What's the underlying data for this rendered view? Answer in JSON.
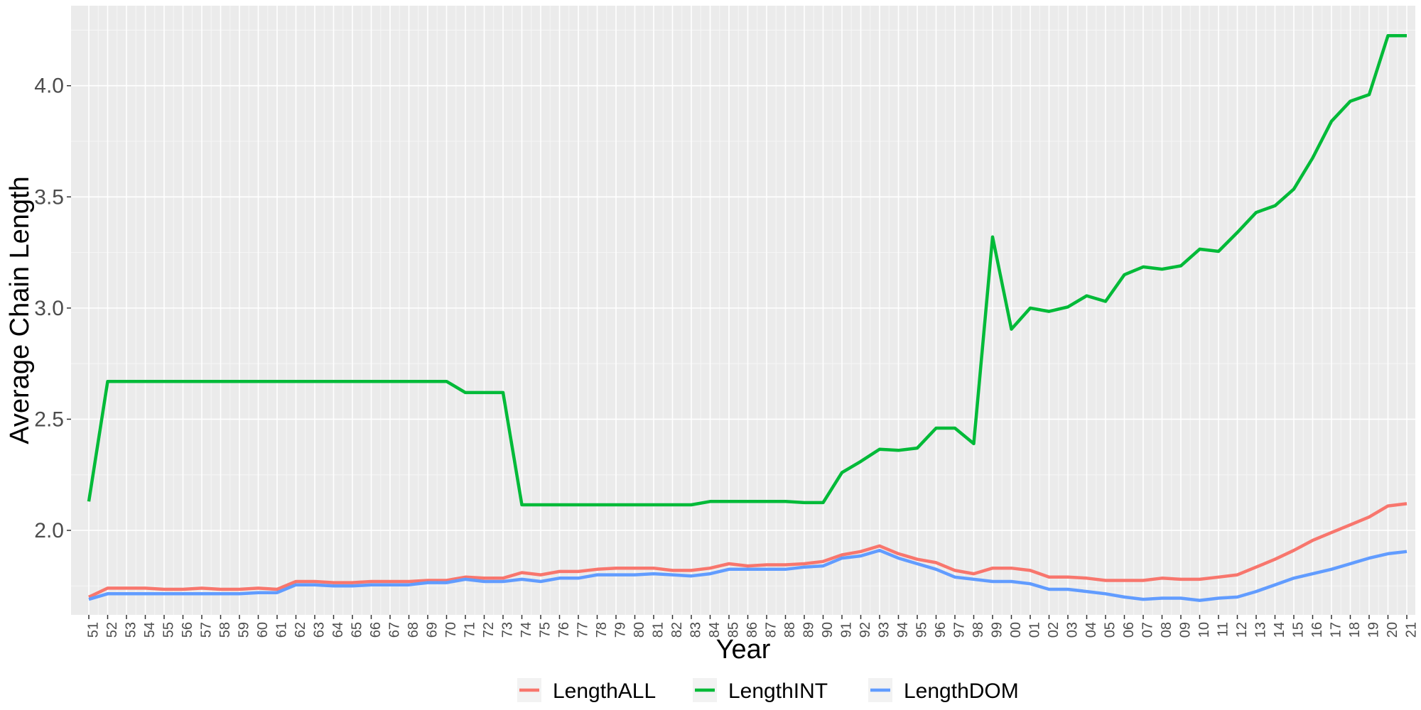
{
  "chart_data": {
    "type": "line",
    "xlabel": "Year",
    "ylabel": "Average Chain Length",
    "ylim": [
      1.62,
      4.36
    ],
    "yticks": [
      2.0,
      2.5,
      3.0,
      3.5,
      4.0
    ],
    "ytick_labels": [
      "2.0",
      "2.5",
      "3.0",
      "3.5",
      "4.0"
    ],
    "grid": true,
    "legend_position": "bottom",
    "categories": [
      "51",
      "52",
      "53",
      "54",
      "55",
      "56",
      "57",
      "58",
      "59",
      "60",
      "61",
      "62",
      "63",
      "64",
      "65",
      "66",
      "67",
      "68",
      "69",
      "70",
      "71",
      "72",
      "73",
      "74",
      "75",
      "76",
      "77",
      "78",
      "79",
      "80",
      "81",
      "82",
      "83",
      "84",
      "85",
      "86",
      "87",
      "88",
      "89",
      "90",
      "91",
      "92",
      "93",
      "94",
      "95",
      "96",
      "97",
      "98",
      "99",
      "00",
      "01",
      "02",
      "03",
      "04",
      "05",
      "06",
      "07",
      "08",
      "09",
      "10",
      "11",
      "12",
      "13",
      "14",
      "15",
      "16",
      "17",
      "18",
      "19",
      "20",
      "21"
    ],
    "series": [
      {
        "name": "LengthALL",
        "color": "#F8766D",
        "values": [
          1.7,
          1.74,
          1.74,
          1.74,
          1.735,
          1.735,
          1.74,
          1.735,
          1.735,
          1.74,
          1.735,
          1.77,
          1.77,
          1.765,
          1.765,
          1.77,
          1.77,
          1.77,
          1.775,
          1.775,
          1.79,
          1.785,
          1.785,
          1.81,
          1.8,
          1.815,
          1.815,
          1.825,
          1.83,
          1.83,
          1.83,
          1.82,
          1.82,
          1.83,
          1.85,
          1.84,
          1.845,
          1.845,
          1.85,
          1.86,
          1.89,
          1.905,
          1.93,
          1.895,
          1.87,
          1.855,
          1.82,
          1.805,
          1.83,
          1.83,
          1.82,
          1.79,
          1.79,
          1.785,
          1.775,
          1.775,
          1.775,
          1.785,
          1.78,
          1.78,
          1.79,
          1.8,
          1.835,
          1.87,
          1.91,
          1.955,
          1.99,
          2.025,
          2.06,
          2.11,
          2.12
        ]
      },
      {
        "name": "LengthINT",
        "color": "#00BA38",
        "values": [
          2.13,
          2.67,
          2.67,
          2.67,
          2.67,
          2.67,
          2.67,
          2.67,
          2.67,
          2.67,
          2.67,
          2.67,
          2.67,
          2.67,
          2.67,
          2.67,
          2.67,
          2.67,
          2.67,
          2.67,
          2.62,
          2.62,
          2.62,
          2.115,
          2.115,
          2.115,
          2.115,
          2.115,
          2.115,
          2.115,
          2.115,
          2.115,
          2.115,
          2.13,
          2.13,
          2.13,
          2.13,
          2.13,
          2.125,
          2.125,
          2.26,
          2.31,
          2.365,
          2.36,
          2.37,
          2.46,
          2.46,
          2.39,
          3.32,
          2.905,
          3.0,
          2.985,
          3.005,
          3.055,
          3.03,
          3.15,
          3.185,
          3.175,
          3.19,
          3.265,
          3.255,
          3.34,
          3.43,
          3.46,
          3.535,
          3.675,
          3.84,
          3.93,
          3.96,
          4.225,
          4.225
        ]
      },
      {
        "name": "LengthDOM",
        "color": "#619CFF",
        "values": [
          1.69,
          1.715,
          1.715,
          1.715,
          1.715,
          1.715,
          1.715,
          1.715,
          1.715,
          1.72,
          1.72,
          1.755,
          1.755,
          1.75,
          1.75,
          1.755,
          1.755,
          1.755,
          1.765,
          1.765,
          1.78,
          1.77,
          1.77,
          1.78,
          1.77,
          1.785,
          1.785,
          1.8,
          1.8,
          1.8,
          1.805,
          1.8,
          1.795,
          1.805,
          1.825,
          1.825,
          1.825,
          1.825,
          1.835,
          1.84,
          1.875,
          1.885,
          1.91,
          1.875,
          1.85,
          1.825,
          1.79,
          1.78,
          1.77,
          1.77,
          1.76,
          1.735,
          1.735,
          1.725,
          1.715,
          1.7,
          1.69,
          1.695,
          1.695,
          1.685,
          1.695,
          1.7,
          1.725,
          1.755,
          1.785,
          1.805,
          1.825,
          1.85,
          1.875,
          1.895,
          1.905
        ]
      }
    ]
  }
}
